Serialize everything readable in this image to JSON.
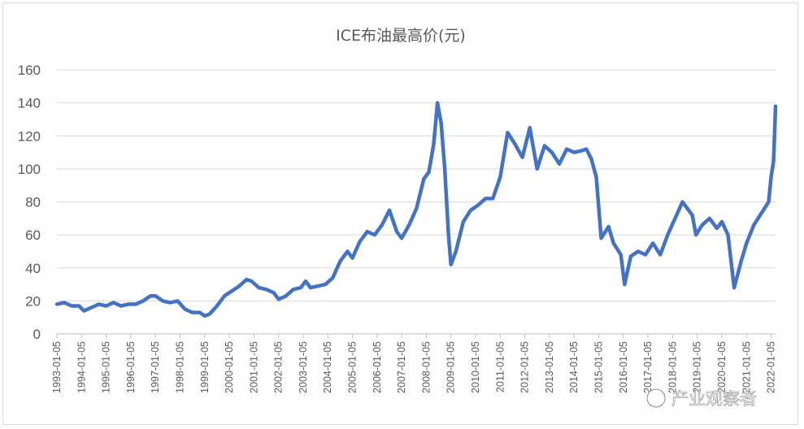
{
  "chart_data": {
    "type": "line",
    "title": "ICE布油最高价(元)",
    "xlabel": "",
    "ylabel": "",
    "ylim": [
      0,
      160
    ],
    "yticks": [
      0,
      20,
      40,
      60,
      80,
      100,
      120,
      140,
      160
    ],
    "xticks": [
      "1993-01-05",
      "1994-01-05",
      "1995-01-05",
      "1996-01-05",
      "1997-01-05",
      "1998-01-05",
      "1999-01-05",
      "2000-01-05",
      "2001-01-05",
      "2002-01-05",
      "2003-01-05",
      "2004-01-05",
      "2005-01-05",
      "2006-01-05",
      "2007-01-05",
      "2008-01-05",
      "2009-01-05",
      "2010-01-05",
      "2011-01-05",
      "2012-01-05",
      "2013-01-05",
      "2014-01-05",
      "2015-01-05",
      "2016-01-05",
      "2017-01-05",
      "2018-01-05",
      "2019-01-05",
      "2020-01-05",
      "2021-01-05",
      "2022-01-05"
    ],
    "grid": true,
    "legend": "none",
    "line_color": "#4472c4",
    "series": [
      {
        "x": [
          1993.0,
          1993.3,
          1993.6,
          1993.9,
          1994.1,
          1994.4,
          1994.7,
          1995.0,
          1995.3,
          1995.6,
          1995.9,
          1996.2,
          1996.5,
          1996.8,
          1997.0,
          1997.3,
          1997.6,
          1997.9,
          1998.2,
          1998.5,
          1998.8,
          1999.0,
          1999.2,
          1999.5,
          1999.8,
          2000.1,
          2000.4,
          2000.7,
          2000.9,
          2001.2,
          2001.5,
          2001.8,
          2002.0,
          2002.3,
          2002.6,
          2002.9,
          2003.1,
          2003.3,
          2003.6,
          2003.9,
          2004.2,
          2004.5,
          2004.8,
          2005.0,
          2005.3,
          2005.6,
          2005.9,
          2006.2,
          2006.5,
          2006.8,
          2007.0,
          2007.3,
          2007.6,
          2007.9,
          2008.1,
          2008.3,
          2008.45,
          2008.6,
          2008.75,
          2008.9,
          2009.0,
          2009.2,
          2009.5,
          2009.8,
          2010.1,
          2010.4,
          2010.7,
          2011.0,
          2011.3,
          2011.6,
          2011.9,
          2012.2,
          2012.5,
          2012.8,
          2013.1,
          2013.4,
          2013.7,
          2014.0,
          2014.3,
          2014.5,
          2014.7,
          2014.9,
          2015.1,
          2015.4,
          2015.6,
          2015.9,
          2016.05,
          2016.3,
          2016.6,
          2016.9,
          2017.2,
          2017.5,
          2017.8,
          2018.1,
          2018.4,
          2018.8,
          2018.95,
          2019.2,
          2019.5,
          2019.8,
          2020.0,
          2020.25,
          2020.5,
          2020.8,
          2021.0,
          2021.3,
          2021.6,
          2021.9,
          2022.0,
          2022.1,
          2022.18
        ],
        "values": [
          18,
          19,
          17,
          17,
          14,
          16,
          18,
          17,
          19,
          17,
          18,
          18,
          20,
          23,
          23,
          20,
          19,
          20,
          15,
          13,
          13,
          11,
          12,
          17,
          23,
          26,
          29,
          33,
          32,
          28,
          27,
          25,
          21,
          23,
          27,
          28,
          32,
          28,
          29,
          30,
          34,
          44,
          50,
          46,
          56,
          62,
          60,
          66,
          75,
          62,
          58,
          66,
          76,
          94,
          98,
          115,
          140,
          128,
          100,
          60,
          42,
          50,
          68,
          75,
          78,
          82,
          82,
          95,
          122,
          115,
          107,
          125,
          100,
          114,
          110,
          103,
          112,
          110,
          111,
          112,
          106,
          95,
          58,
          65,
          55,
          48,
          30,
          47,
          50,
          48,
          55,
          48,
          60,
          70,
          80,
          72,
          60,
          66,
          70,
          64,
          68,
          60,
          28,
          45,
          55,
          66,
          73,
          80,
          95,
          105,
          138
        ]
      }
    ],
    "watermark": "产业观察者"
  }
}
